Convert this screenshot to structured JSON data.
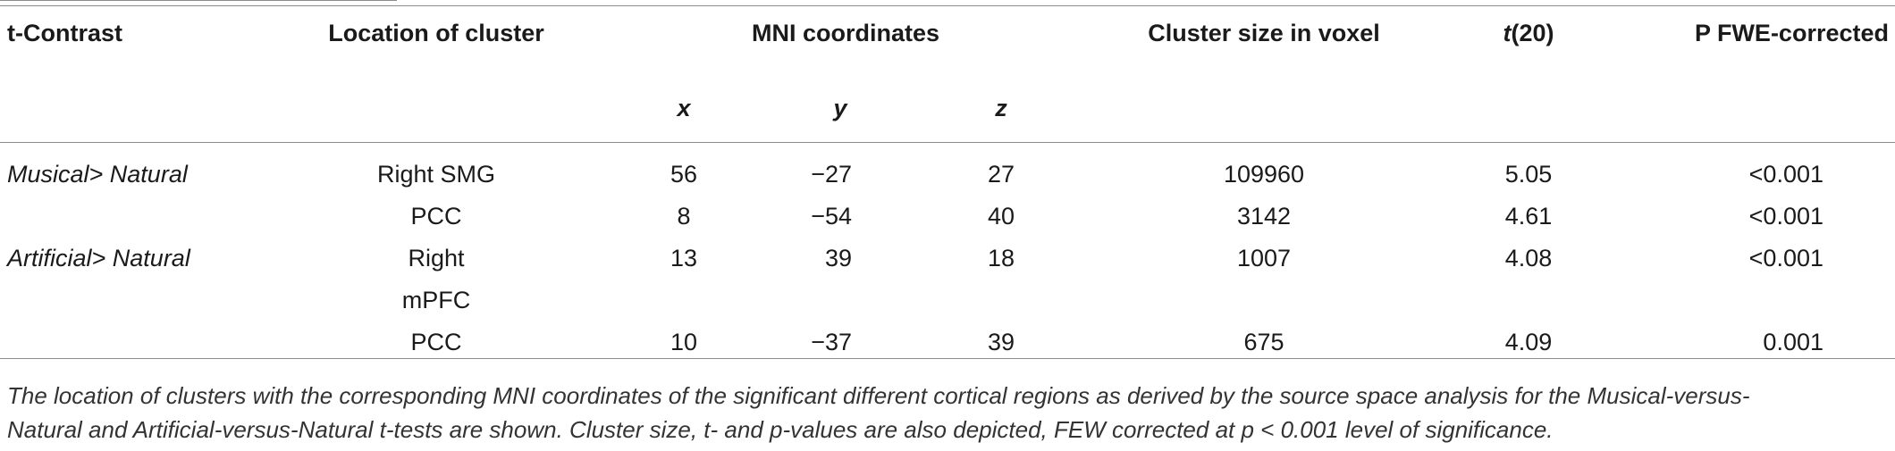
{
  "table": {
    "headers": {
      "contrast": "t-Contrast",
      "location": "Location of cluster",
      "mni": "MNI coordinates",
      "x": "x",
      "y": "y",
      "z": "z",
      "cluster_size": "Cluster size in voxel",
      "t_stat": "t(20)",
      "p_value": "P FWE-corrected"
    },
    "rows": [
      {
        "contrast": "Musical> Natural",
        "location": "Right SMG",
        "x": "56",
        "y": "−27",
        "z": "27",
        "size": "109960",
        "t": "5.05",
        "p": "<0.001"
      },
      {
        "contrast": "",
        "location": "PCC",
        "x": "8",
        "y": "−54",
        "z": "40",
        "size": "3142",
        "t": "4.61",
        "p": "<0.001"
      },
      {
        "contrast": "Artificial> Natural",
        "location": "Right",
        "location_line2": "mPFC",
        "x": "13",
        "y": "39",
        "z": "18",
        "size": "1007",
        "t": "4.08",
        "p": "<0.001"
      },
      {
        "contrast": "",
        "location": "PCC",
        "x": "10",
        "y": "−37",
        "z": "39",
        "size": "675",
        "t": "4.09",
        "p": "0.001"
      }
    ],
    "footnote": {
      "line1": "The location of clusters with the corresponding MNI coordinates of the significant different cortical regions as derived by the source space analysis for the Musical-versus-",
      "line2": "Natural and Artificial-versus-Natural t-tests are shown. Cluster size, t- and p-values are also depicted, FEW corrected at p < 0.001 level of significance."
    }
  }
}
